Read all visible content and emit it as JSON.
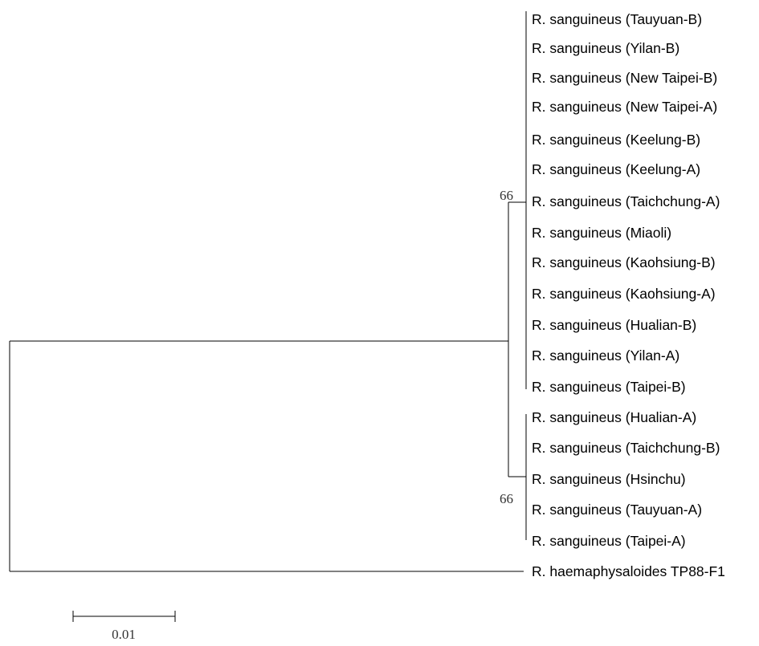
{
  "tree": {
    "clade_a_taxa": [
      "R. sanguineus (Tauyuan-B)",
      "R. sanguineus (Yilan-B)",
      "R. sanguineus (New Taipei-B)",
      "R. sanguineus (New Taipei-A)",
      "R. sanguineus (Keelung-B)",
      "R. sanguineus (Keelung-A)",
      "R. sanguineus (Taichchung-A)",
      "R. sanguineus (Miaoli)",
      "R. sanguineus (Kaohsiung-B)",
      "R. sanguineus (Kaohsiung-A)",
      "R. sanguineus (Hualian-B)",
      "R. sanguineus (Yilan-A)",
      "R. sanguineus (Taipei-B)"
    ],
    "clade_b_taxa": [
      "R. sanguineus (Hualian-A)",
      "R. sanguineus (Taichchung-B)",
      "R. sanguineus (Hsinchu)",
      "R. sanguineus (Tauyuan-A)",
      "R. sanguineus (Taipei-A)"
    ],
    "outgroup": "R. haemaphysaloides TP88-F1",
    "bootstrap_a": "66",
    "bootstrap_b": "66",
    "scale_bar_label": "0.01",
    "scale_bar_value": 0.01
  }
}
